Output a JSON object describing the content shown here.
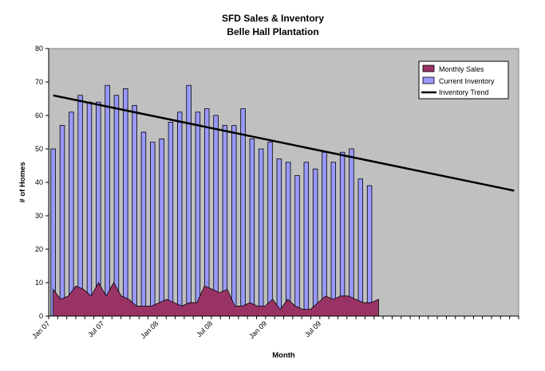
{
  "chart_data": {
    "type": "bar",
    "title": "SFD Sales & Inventory",
    "subtitle": "Belle Hall Plantation",
    "xlabel": "Month",
    "ylabel": "# of Homes",
    "ylim": [
      0,
      80
    ],
    "yticks": [
      0,
      10,
      20,
      30,
      40,
      50,
      60,
      70,
      80
    ],
    "x_tick_labels": [
      {
        "month_index": 0,
        "label": "Jan 07"
      },
      {
        "month_index": 6,
        "label": "Jul 07"
      },
      {
        "month_index": 12,
        "label": "Jan 08"
      },
      {
        "month_index": 18,
        "label": "Jul 08"
      },
      {
        "month_index": 24,
        "label": "Jan 09"
      },
      {
        "month_index": 30,
        "label": "Jul 09"
      }
    ],
    "total_months": 52,
    "grid": false,
    "plot_background": "#c0c0c0",
    "legend_position": "top-right",
    "series": [
      {
        "name": "Monthly Sales",
        "type": "area",
        "color": "#993366",
        "values": [
          8,
          5,
          6,
          9,
          8,
          6,
          10,
          6,
          10,
          6,
          5,
          3,
          3,
          3,
          4,
          5,
          4,
          3,
          4,
          4,
          9,
          8,
          7,
          8,
          3,
          3,
          4,
          3,
          3,
          5,
          2,
          5,
          3,
          2,
          2,
          4,
          6,
          5,
          6,
          6,
          5,
          4,
          4,
          5
        ]
      },
      {
        "name": "Current Inventory",
        "type": "bar",
        "color": "#9999ff",
        "values": [
          50,
          57,
          61,
          66,
          64,
          64,
          69,
          66,
          68,
          63,
          55,
          52,
          53,
          58,
          61,
          69,
          61,
          62,
          60,
          57,
          57,
          62,
          53,
          50,
          52,
          47,
          46,
          42,
          46,
          44,
          49,
          46,
          49,
          50,
          41,
          39
        ]
      },
      {
        "name": "Inventory Trend",
        "type": "line",
        "color": "#000000",
        "start": {
          "month_index": 0,
          "value": 66
        },
        "end": {
          "month_index": 51,
          "value": 37.5
        }
      }
    ]
  }
}
